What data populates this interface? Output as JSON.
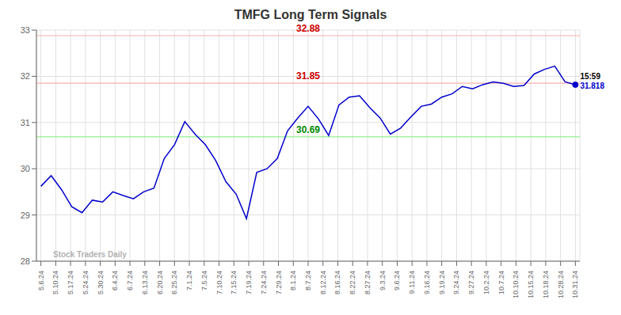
{
  "chart_data": {
    "type": "line",
    "title": "TMFG Long Term Signals",
    "x": [
      0,
      0.6923,
      1.3846,
      2.0769,
      2.7692,
      3.4615,
      4.1538,
      4.8462,
      5.5385,
      6.2308,
      6.9231,
      7.6154,
      8.3077,
      9,
      9.6923,
      10.3846,
      11.0769,
      11.7692,
      12.4615,
      13.1538,
      13.8462,
      14.5385,
      15.2308,
      15.9231,
      16.6154,
      17.3077,
      18,
      18.6923,
      19.3846,
      20.0769,
      20.7692,
      21.4615,
      22.1538,
      22.8462,
      23.5385,
      24.2308,
      24.9231,
      25.6154,
      26.3077,
      27,
      27.6923,
      28.3846,
      29.0769,
      29.7692,
      30.4615,
      31.1538,
      31.8462,
      32.5385,
      33.2308,
      33.9231,
      34.6154,
      35.3077,
      36
    ],
    "values": [
      29.62,
      29.85,
      29.55,
      29.18,
      29.05,
      29.32,
      29.28,
      29.5,
      29.42,
      29.35,
      29.5,
      29.58,
      30.22,
      30.52,
      31.02,
      30.75,
      30.52,
      30.18,
      29.72,
      29.45,
      28.92,
      29.92,
      30.0,
      30.22,
      30.82,
      31.1,
      31.35,
      31.08,
      30.72,
      31.38,
      31.55,
      31.58,
      31.32,
      31.1,
      30.75,
      30.88,
      31.12,
      31.35,
      31.4,
      31.55,
      31.62,
      31.78,
      31.73,
      31.82,
      31.88,
      31.85,
      31.78,
      31.8,
      32.05,
      32.15,
      32.22,
      31.88,
      31.818
    ],
    "color": "#0000CC",
    "xlim": [
      -0.3,
      36.3
    ],
    "xticks": [
      {
        "value": 0,
        "label": "5.6.24"
      },
      {
        "value": 1,
        "label": "5.10.24"
      },
      {
        "value": 2,
        "label": "5.17.24"
      },
      {
        "value": 3,
        "label": "5.24.24"
      },
      {
        "value": 4,
        "label": "5.30.24"
      },
      {
        "value": 5,
        "label": "6.4.24"
      },
      {
        "value": 6,
        "label": "6.7.24"
      },
      {
        "value": 7,
        "label": "6.13.24"
      },
      {
        "value": 8,
        "label": "6.20.24"
      },
      {
        "value": 9,
        "label": "6.25.24"
      },
      {
        "value": 10,
        "label": "7.1.24"
      },
      {
        "value": 11,
        "label": "7.5.24"
      },
      {
        "value": 12,
        "label": "7.10.24"
      },
      {
        "value": 13,
        "label": "7.15.24"
      },
      {
        "value": 14,
        "label": "7.19.24"
      },
      {
        "value": 15,
        "label": "7.24.24"
      },
      {
        "value": 16,
        "label": "7.29.24"
      },
      {
        "value": 17,
        "label": "8.1.24"
      },
      {
        "value": 18,
        "label": "8.7.24"
      },
      {
        "value": 19,
        "label": "8.12.24"
      },
      {
        "value": 20,
        "label": "8.16.24"
      },
      {
        "value": 21,
        "label": "8.22.24"
      },
      {
        "value": 22,
        "label": "8.27.24"
      },
      {
        "value": 23,
        "label": "9.3.24"
      },
      {
        "value": 24,
        "label": "9.6.24"
      },
      {
        "value": 25,
        "label": "9.11.24"
      },
      {
        "value": 26,
        "label": "9.16.24"
      },
      {
        "value": 27,
        "label": "9.19.24"
      },
      {
        "value": 28,
        "label": "9.24.24"
      },
      {
        "value": 29,
        "label": "9.27.24"
      },
      {
        "value": 30,
        "label": "10.2.24"
      },
      {
        "value": 31,
        "label": "10.7.24"
      },
      {
        "value": 32,
        "label": "10.10.24"
      },
      {
        "value": 33,
        "label": "10.15.24"
      },
      {
        "value": 34,
        "label": "10.18.24"
      },
      {
        "value": 35,
        "label": "10.28.24"
      },
      {
        "value": 36,
        "label": "10.31.24"
      }
    ],
    "ylim": [
      28,
      33
    ],
    "yticks": [
      28,
      29,
      30,
      31,
      32,
      33
    ],
    "grid": true,
    "hlines": [
      {
        "value": 32.88,
        "label": "32.88",
        "color": "#FFB0B0",
        "label_color": "#CC0000"
      },
      {
        "value": 31.85,
        "label": "31.85",
        "color": "#FFB0B0",
        "label_color": "#CC0000"
      },
      {
        "value": 30.69,
        "label": "30.69",
        "color": "#90EE90",
        "label_color": "#008800"
      }
    ],
    "annotations": [
      {
        "text": "15:59",
        "x": 36,
        "y": 31.938,
        "color": "#000000"
      },
      {
        "text": "31.818",
        "x": 36,
        "y": 31.738,
        "color": "#0000CC"
      },
      {
        "text": "Stock Traders Daily",
        "x": 0.5,
        "y": 28.08,
        "color": "#808080"
      }
    ]
  }
}
